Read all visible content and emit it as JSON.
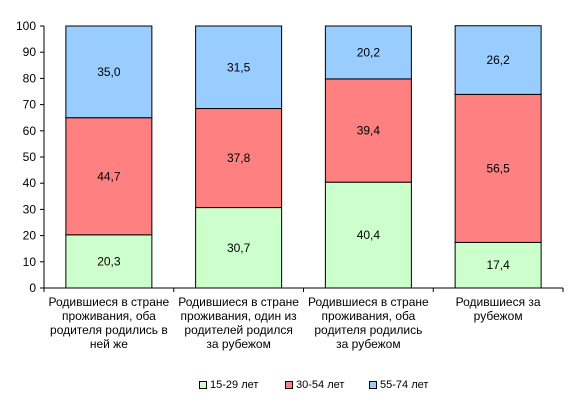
{
  "chart_data": {
    "type": "bar",
    "stacked": true,
    "categories": [
      "Родившиеся в стране проживания, оба родителя родились в ней же",
      "Родившиеся в стране проживания, один из родителей родился за рубежом",
      "Родившиеся в стране проживания, оба родителя родились за рубежом",
      "Родившиеся за рубежом"
    ],
    "category_lines": [
      [
        "Родившиеся  в стране",
        "проживания, оба",
        "родителя родились в",
        "ней же"
      ],
      [
        "Родившиеся  в стране",
        "проживания, один из",
        "родителей родился",
        "за рубежом"
      ],
      [
        "Родившиеся  в стране",
        "проживания, оба",
        "родителя родились",
        "за рубежом"
      ],
      [
        "Родившиеся за",
        "рубежом"
      ]
    ],
    "series": [
      {
        "name": "15-29 лет",
        "color": "#ccffcc",
        "values": [
          20.3,
          30.7,
          40.4,
          17.4
        ],
        "labels": [
          "20,3",
          "30,7",
          "40,4",
          "17,4"
        ]
      },
      {
        "name": "30-54 лет",
        "color": "#ff8080",
        "values": [
          44.7,
          37.8,
          39.4,
          56.5
        ],
        "labels": [
          "44,7",
          "37,8",
          "39,4",
          "56,5"
        ]
      },
      {
        "name": "55-74 лет",
        "color": "#99ccff",
        "values": [
          35.0,
          31.5,
          20.2,
          26.2
        ],
        "labels": [
          "35,0",
          "31,5",
          "20,2",
          "26,2"
        ]
      }
    ],
    "ylim": [
      0,
      100
    ],
    "yticks": [
      0,
      10,
      20,
      30,
      40,
      50,
      60,
      70,
      80,
      90,
      100
    ],
    "grid": false,
    "legend_position": "bottom",
    "title": "",
    "xlabel": "",
    "ylabel": ""
  }
}
